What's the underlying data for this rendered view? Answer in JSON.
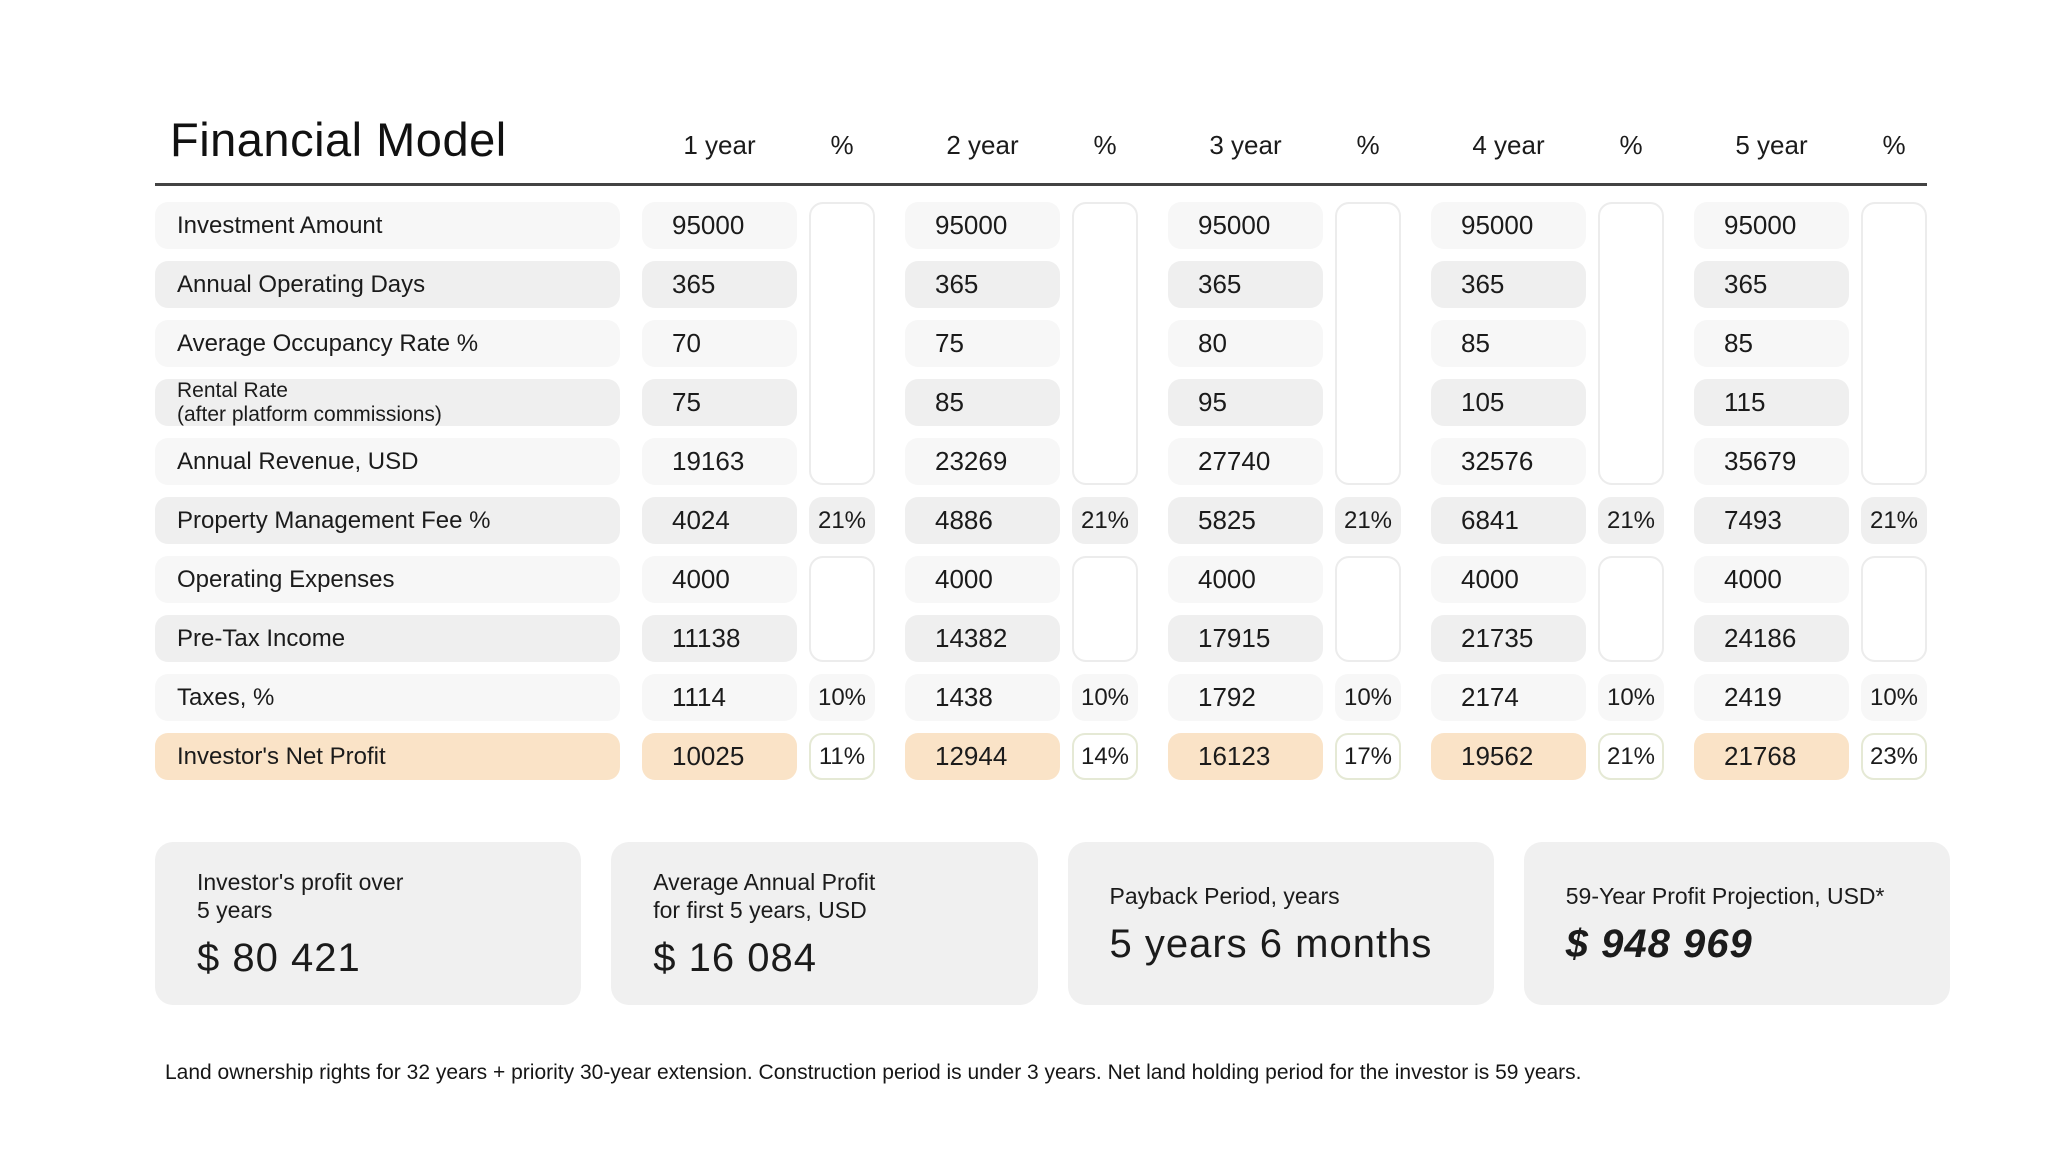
{
  "title": "Financial Model",
  "columns": [
    "1 year",
    "%",
    "2 year",
    "%",
    "3 year",
    "%",
    "4 year",
    "%",
    "5 year",
    "%"
  ],
  "rows": [
    {
      "label": "Investment Amount",
      "shade": "light",
      "values": [
        "95000",
        "95000",
        "95000",
        "95000",
        "95000"
      ],
      "pcts": null,
      "pct_style": null
    },
    {
      "label": "Annual Operating Days",
      "shade": "dark",
      "values": [
        "365",
        "365",
        "365",
        "365",
        "365"
      ],
      "pcts": null,
      "pct_style": null
    },
    {
      "label": "Average Occupancy Rate %",
      "shade": "light",
      "values": [
        "70",
        "75",
        "80",
        "85",
        "85"
      ],
      "pcts": null,
      "pct_style": null
    },
    {
      "label": "Rental Rate\n(after platform commissions)",
      "shade": "dark",
      "values": [
        "75",
        "85",
        "95",
        "105",
        "115"
      ],
      "pcts": null,
      "pct_style": null
    },
    {
      "label": "Annual Revenue, USD",
      "shade": "light",
      "values": [
        "19163",
        "23269",
        "27740",
        "32576",
        "35679"
      ],
      "pcts": null,
      "pct_style": null
    },
    {
      "label": "Property Management Fee %",
      "shade": "dark",
      "values": [
        "4024",
        "4886",
        "5825",
        "6841",
        "7493"
      ],
      "pcts": [
        "21%",
        "21%",
        "21%",
        "21%",
        "21%"
      ],
      "pct_style": "filled"
    },
    {
      "label": "Operating Expenses",
      "shade": "light",
      "values": [
        "4000",
        "4000",
        "4000",
        "4000",
        "4000"
      ],
      "pcts": null,
      "pct_style": null
    },
    {
      "label": "Pre-Tax Income",
      "shade": "dark",
      "values": [
        "11138",
        "14382",
        "17915",
        "21735",
        "24186"
      ],
      "pcts": null,
      "pct_style": null
    },
    {
      "label": "Taxes, %",
      "shade": "light",
      "values": [
        "1114",
        "1438",
        "1792",
        "2174",
        "2419"
      ],
      "pcts": [
        "10%",
        "10%",
        "10%",
        "10%",
        "10%"
      ],
      "pct_style": "filled"
    },
    {
      "label": "Investor's Net Profit",
      "shade": "peach",
      "values": [
        "10025",
        "12944",
        "16123",
        "19562",
        "21768"
      ],
      "pcts": [
        "11%",
        "14%",
        "17%",
        "21%",
        "23%"
      ],
      "pct_style": "outline"
    }
  ],
  "cards": [
    {
      "label": "Investor's profit over\n5 years",
      "value": "$ 80 421"
    },
    {
      "label": "Average Annual Profit\nfor first 5 years, USD",
      "value": "$ 16 084"
    },
    {
      "label": "Payback Period, years",
      "value": "5 years 6 months"
    },
    {
      "label": "59-Year Profit Projection, USD*",
      "value": "$ 948 969"
    }
  ],
  "footnote": "Land ownership rights for 32 years + priority 30-year extension. Construction period is under 3 years. Net land holding period for the investor is 59 years.",
  "colors": {
    "row_light": "#f7f7f7",
    "row_dark": "#efefef",
    "highlight_peach": "#fae3c7",
    "outline_percent_border": "#e5e9d5",
    "empty_percent_border": "#ececec",
    "card_background": "#f0f0f0",
    "header_rule": "#434343",
    "text": "#1b1b1b"
  }
}
